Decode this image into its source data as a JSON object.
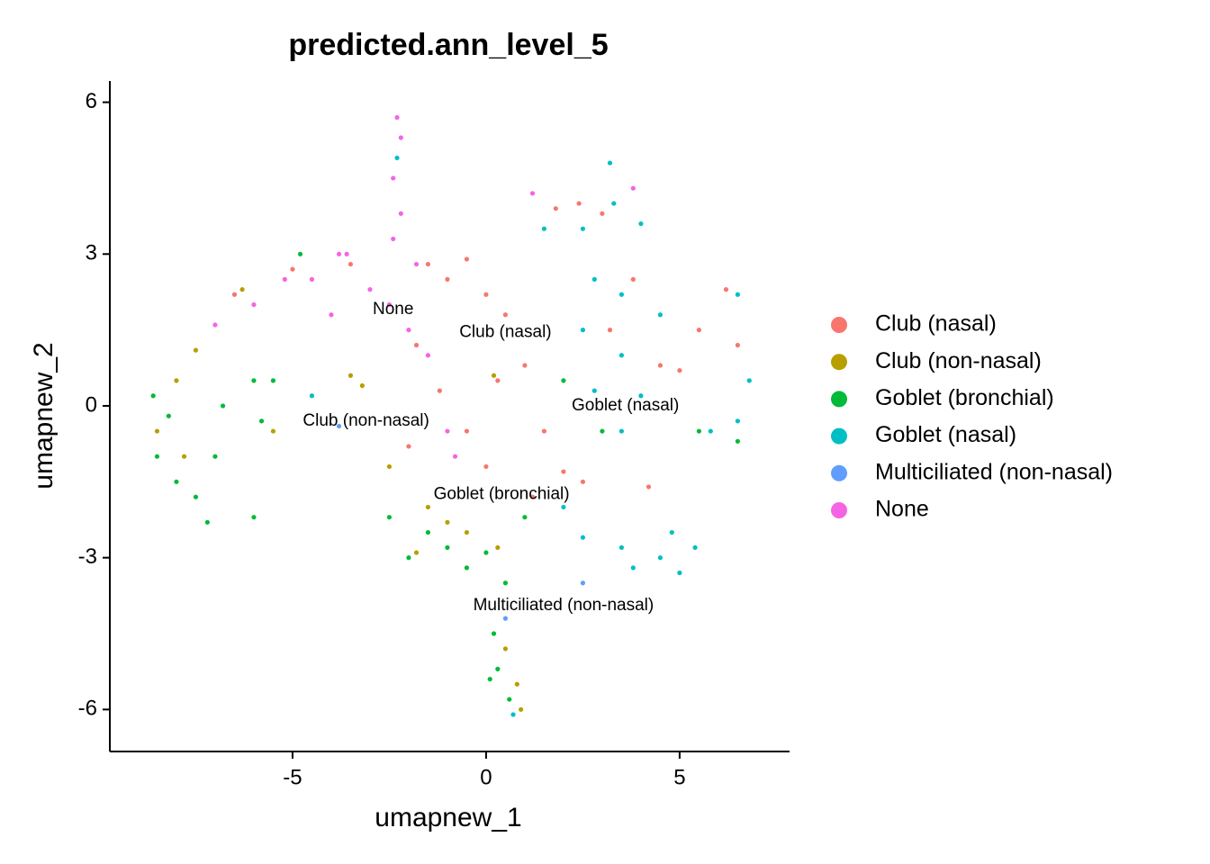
{
  "chart_data": {
    "type": "scatter",
    "title": "predicted.ann_level_5",
    "x_label": "umapnew_1",
    "y_label": "umapnew_2",
    "xlim": [
      -9.72,
      7.84
    ],
    "ylim": [
      -6.83,
      6.42
    ],
    "xticks": [
      -5,
      0,
      5
    ],
    "yticks": [
      -6,
      -3,
      0,
      3,
      6
    ],
    "grid": false,
    "legend": "right",
    "series": [
      {
        "name": "Club (nasal)",
        "color": "#F8766D",
        "x": [
          -1.5,
          -1,
          -0.5,
          0,
          0.5,
          -1.8,
          -1.2,
          -0.5,
          0.3,
          1,
          1.5,
          2,
          2.5,
          1.2,
          0,
          1.8,
          2.4,
          3,
          3.8,
          4.5,
          5,
          5.5,
          6.2,
          6.5,
          -2,
          -3.5,
          -5,
          -6.5,
          3.2,
          4.2
        ],
        "y": [
          2.8,
          2.5,
          2.9,
          2.2,
          1.8,
          1.2,
          0.3,
          -0.5,
          0.5,
          0.8,
          -0.5,
          -1.3,
          -1.5,
          -1.8,
          -1.2,
          3.9,
          4.0,
          3.8,
          2.5,
          0.8,
          0.7,
          1.5,
          2.3,
          1.2,
          -0.8,
          2.8,
          2.7,
          2.2,
          1.5,
          -1.6
        ]
      },
      {
        "name": "Club (non-nasal)",
        "color": "#B79F00",
        "x": [
          -8.5,
          -8,
          -7.5,
          -7.8,
          -3.2,
          -3.5,
          -1.5,
          -1,
          -0.5,
          0.3,
          0.5,
          0.8,
          -5.5,
          -2.5,
          -6.3,
          0.2,
          -1.8,
          0.9
        ],
        "y": [
          -0.5,
          0.5,
          1.1,
          -1,
          0.4,
          0.6,
          -2,
          -2.3,
          -2.5,
          -2.8,
          -4.8,
          -5.5,
          -0.5,
          -1.2,
          2.3,
          0.6,
          -2.9,
          -6.0
        ]
      },
      {
        "name": "Goblet (bronchial)",
        "color": "#00BA38",
        "x": [
          -8.5,
          -8,
          -7.5,
          -8.2,
          -7,
          -6.8,
          -6,
          -5.5,
          -5.8,
          -7.2,
          -6,
          -8.6,
          -1.5,
          -1,
          -0.5,
          0,
          0.5,
          -2,
          0.2,
          0.3,
          0.6,
          0.1,
          3,
          5.5,
          6.5,
          2,
          1,
          -4.8,
          -2.5
        ],
        "y": [
          -1,
          -1.5,
          -1.8,
          -0.2,
          -1,
          0,
          0.5,
          0.5,
          -0.3,
          -2.3,
          -2.2,
          0.2,
          -2.5,
          -2.8,
          -3.2,
          -2.9,
          -3.5,
          -3,
          -4.5,
          -5.2,
          -5.8,
          -5.4,
          -0.5,
          -0.5,
          -0.7,
          0.5,
          -2.2,
          3,
          -2.2
        ]
      },
      {
        "name": "Goblet (nasal)",
        "color": "#00BFC4",
        "x": [
          2.5,
          3.3,
          4,
          2.8,
          3.5,
          2.5,
          3.5,
          4.5,
          2.8,
          3.5,
          4,
          2,
          2.5,
          3.5,
          4.5,
          5,
          5.4,
          4.8,
          3.8,
          6.5,
          6.8,
          6.5,
          5.8,
          -4.5,
          1.5,
          -2.3,
          0.7,
          3.2
        ],
        "y": [
          3.5,
          4.0,
          3.6,
          2.5,
          2.2,
          1.5,
          1.0,
          1.8,
          0.3,
          -0.5,
          0.2,
          -2,
          -2.6,
          -2.8,
          -3,
          -3.3,
          -2.8,
          -2.5,
          -3.2,
          2.2,
          0.5,
          -0.3,
          -0.5,
          0.2,
          3.5,
          4.9,
          -6.1,
          4.8
        ]
      },
      {
        "name": "Multiciliated (non-nasal)",
        "color": "#619CFF",
        "x": [
          2.5,
          0.5,
          -3.8
        ],
        "y": [
          -3.5,
          -4.2,
          -0.4
        ]
      },
      {
        "name": "None",
        "color": "#F564E3",
        "x": [
          -2.3,
          -2.2,
          -2.4,
          -2.2,
          -2.4,
          -3.8,
          -3.6,
          -4.5,
          -4,
          -3,
          -2.5,
          -2,
          -1.8,
          -1.5,
          -1,
          -0.8,
          -5.2,
          -6,
          -7,
          3.8,
          1.2
        ],
        "y": [
          5.7,
          5.3,
          4.5,
          3.8,
          3.3,
          3.0,
          3.0,
          2.5,
          1.8,
          2.3,
          2.0,
          1.5,
          2.8,
          1.0,
          -0.5,
          -1.0,
          2.5,
          2.0,
          1.6,
          4.3,
          4.2
        ]
      }
    ],
    "annotations": [
      {
        "text": "None",
        "x": -2.4,
        "y": 1.9
      },
      {
        "text": "Club (nasal)",
        "x": 0.5,
        "y": 1.45
      },
      {
        "text": "Goblet (nasal)",
        "x": 3.6,
        "y": 0.0
      },
      {
        "text": "Club (non-nasal)",
        "x": -3.1,
        "y": -0.3
      },
      {
        "text": "Goblet (bronchial)",
        "x": 0.4,
        "y": -1.75
      },
      {
        "text": "Multiciliated (non-nasal)",
        "x": 2.0,
        "y": -3.95
      }
    ]
  }
}
